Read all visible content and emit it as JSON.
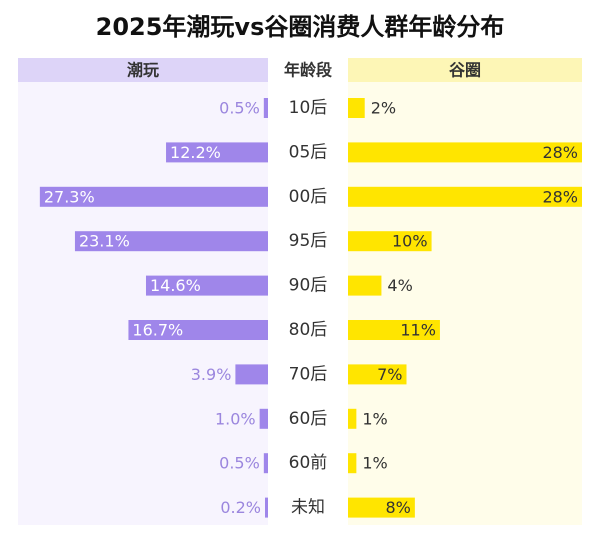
{
  "chart_data": {
    "type": "butterfly",
    "title": "2025年潮玩vs谷圈消费人群年龄分布",
    "category_header": "年龄段",
    "categories": [
      "10后",
      "05后",
      "00后",
      "95后",
      "90后",
      "80后",
      "70后",
      "60后",
      "60前",
      "未知"
    ],
    "series": [
      {
        "name": "潮玩",
        "color": "#9f86ea",
        "values": [
          0.5,
          12.2,
          27.3,
          23.1,
          14.6,
          16.7,
          3.9,
          1.0,
          0.5,
          0.2
        ],
        "value_labels": [
          "0.5%",
          "12.2%",
          "27.3%",
          "23.1%",
          "14.6%",
          "16.7%",
          "3.9%",
          "1.0%",
          "0.5%",
          "0.2%"
        ]
      },
      {
        "name": "谷圈",
        "color": "#ffe500",
        "values": [
          2,
          28,
          28,
          10,
          4,
          11,
          7,
          1,
          1,
          8
        ],
        "value_labels": [
          "2%",
          "28%",
          "28%",
          "10%",
          "4%",
          "11%",
          "7%",
          "1%",
          "1%",
          "8%"
        ]
      }
    ]
  }
}
